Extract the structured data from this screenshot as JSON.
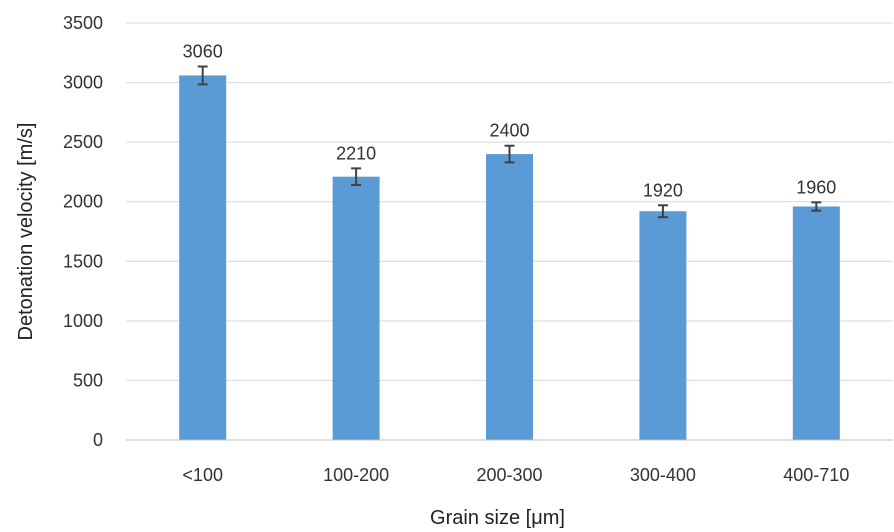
{
  "chart_data": {
    "type": "bar",
    "categories": [
      "<100",
      "100-200",
      "200-300",
      "300-400",
      "400-710"
    ],
    "values": [
      3060,
      2210,
      2400,
      1920,
      1960
    ],
    "error": [
      75,
      70,
      70,
      50,
      35
    ],
    "data_labels": [
      "3060",
      "2210",
      "2400",
      "1920",
      "1960"
    ],
    "xlabel": "Grain size [μm]",
    "ylabel": "Detonation velocity  [m/s]",
    "ylim": [
      0,
      3500
    ],
    "yticks": [
      0,
      500,
      1000,
      1500,
      2000,
      2500,
      3000,
      3500
    ],
    "grid": true,
    "legend": "none",
    "colors": {
      "bar": "#5b9bd5",
      "error_bar": "#404040",
      "grid": "#d9d9d9"
    }
  }
}
